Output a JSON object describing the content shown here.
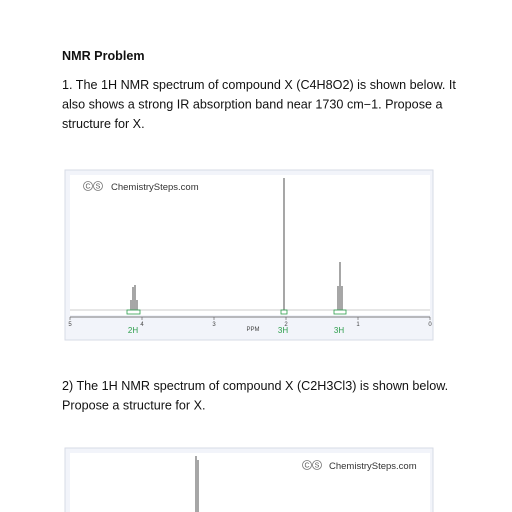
{
  "title": "NMR Problem",
  "problems": [
    {
      "lines": [
        "1. The 1H NMR spectrum of compound X (C4H8O2) is shown below. It",
        "also shows a strong IR absorption band near 1730 cm−1. Propose a",
        "structure for X."
      ],
      "figure": {
        "logo": [
          "C",
          "S"
        ],
        "watermark": "ChemistrySteps.com",
        "axis_ticks": [
          5,
          4,
          3,
          2,
          1,
          0
        ],
        "axis_label": "PPM",
        "integrations": [
          "2H",
          "3H",
          "3H"
        ]
      }
    },
    {
      "lines": [
        "2) The 1H NMR spectrum of compound X (C2H3Cl3) is shown below.",
        "Propose a structure for X."
      ],
      "figure": {
        "logo": [
          "C",
          "S"
        ],
        "watermark": "ChemistrySteps.com"
      }
    }
  ]
}
